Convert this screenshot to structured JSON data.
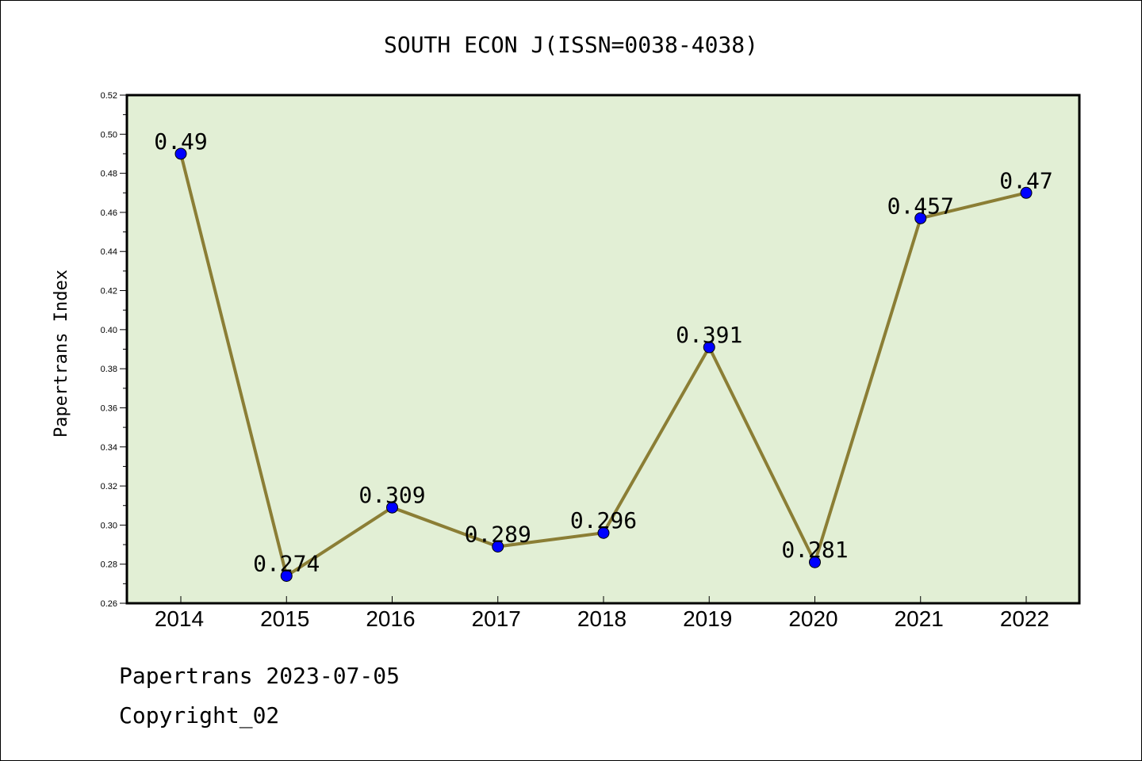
{
  "chart_data": {
    "type": "line",
    "title": "SOUTH ECON J(ISSN=0038-4038)",
    "xlabel": "",
    "ylabel": "Papertrans Index",
    "categories": [
      "2014",
      "2015",
      "2016",
      "2017",
      "2018",
      "2019",
      "2020",
      "2021",
      "2022"
    ],
    "series": [
      {
        "values": [
          0.49,
          0.274,
          0.309,
          0.289,
          0.296,
          0.391,
          0.281,
          0.457,
          0.47
        ],
        "labels": [
          "0.49",
          "0.274",
          "0.309",
          "0.289",
          "0.296",
          "0.391",
          "0.281",
          "0.457",
          "0.47"
        ]
      }
    ],
    "ylim": [
      0.26,
      0.52
    ],
    "yticks": [
      "0.26",
      "0.28",
      "0.30",
      "0.32",
      "0.34",
      "0.36",
      "0.38",
      "0.40",
      "0.42",
      "0.44",
      "0.46",
      "0.48",
      "0.50",
      "0.52"
    ],
    "grid": false,
    "colors": {
      "plot_background": "#e2efd5",
      "line": "#8b7e35",
      "marker": "#0000ff"
    }
  },
  "footer": {
    "line1": "Papertrans 2023-07-05",
    "line2": "Copyright_02"
  }
}
